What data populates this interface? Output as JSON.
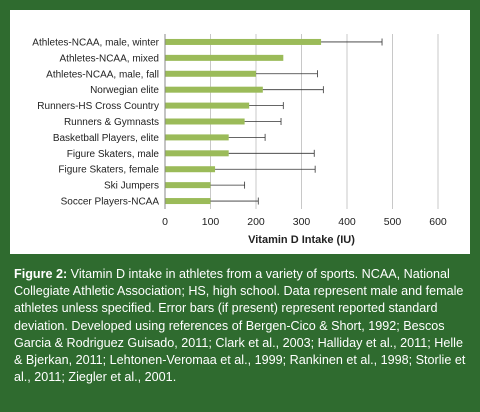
{
  "chart_data": {
    "type": "bar",
    "orientation": "horizontal",
    "categories": [
      "Athletes-NCAA, male, winter",
      "Athletes-NCAA, mixed",
      "Athletes-NCAA, male, fall",
      "Norwegian elite",
      "Runners-HS Cross Country",
      "Runners & Gymnasts",
      "Basketball Players, elite",
      "Figure Skaters, male",
      "Figure Skaters, female",
      "Ski Jumpers",
      "Soccer Players-NCAA"
    ],
    "values": [
      343,
      260,
      200,
      215,
      185,
      175,
      140,
      140,
      110,
      100,
      100
    ],
    "error_upper": [
      477,
      null,
      335,
      348,
      260,
      255,
      220,
      328,
      330,
      175,
      205
    ],
    "xlabel": "Vitamin D Intake (IU)",
    "xlim": [
      0,
      600
    ],
    "xticks": [
      0,
      100,
      200,
      300,
      400,
      500,
      600
    ],
    "bar_color": "#9bbb59",
    "grid": "vertical"
  },
  "caption": {
    "label": "Figure 2:",
    "text": " Vitamin D intake in athletes from a variety of sports. NCAA, National Collegiate Athletic Association; HS, high school. Data represent male and female athletes unless specified. Error bars (if present) represent reported standard deviation. Developed using references of Bergen-Cico & Short, 1992; Bescos Garcia & Rodriguez Guisado, 2011; Clark et al., 2003; Halliday et al., 2011; Helle & Bjerkan, 2011; Lehtonen-Veromaa et al., 1999; Rankinen et al., 1998; Storlie et al., 2011; Ziegler et al., 2001."
  }
}
